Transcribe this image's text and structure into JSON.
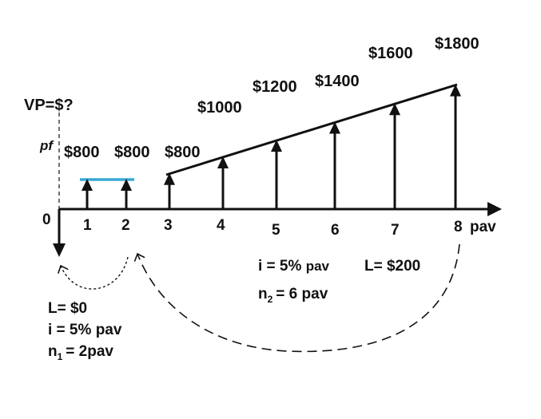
{
  "labels": {
    "present_value": "VP=$?",
    "pf": "pf",
    "origin": "0",
    "unit": "pav"
  },
  "periods": [
    "1",
    "2",
    "3",
    "4",
    "5",
    "6",
    "7",
    "8"
  ],
  "cash_flows": [
    {
      "period": 1,
      "amount": 800,
      "label": "$800"
    },
    {
      "period": 2,
      "amount": 800,
      "label": "$800"
    },
    {
      "period": 3,
      "amount": 800,
      "label": "$800"
    },
    {
      "period": 4,
      "amount": 1000,
      "label": "$1000"
    },
    {
      "period": 5,
      "amount": 1200,
      "label": "$1200"
    },
    {
      "period": 6,
      "amount": 1400,
      "label": "$1400"
    },
    {
      "period": 7,
      "amount": 1600,
      "label": "$1600"
    },
    {
      "period": 8,
      "amount": 1800,
      "label": "$1800"
    }
  ],
  "segment_1": {
    "gradient": "L= $0",
    "rate_prefix": "i = 5%",
    "rate_unit": "pav",
    "n_prefix": "n",
    "n_sub": "1",
    "n_value": "= 2pav"
  },
  "segment_2": {
    "gradient": "L= $200",
    "rate_prefix": "i = 5%",
    "rate_unit": "pav",
    "n_prefix": "n",
    "n_sub": "2",
    "n_value": "= 6 pav"
  },
  "colors": {
    "ink": "#111111",
    "annuity_line": "#3aa8d4"
  }
}
